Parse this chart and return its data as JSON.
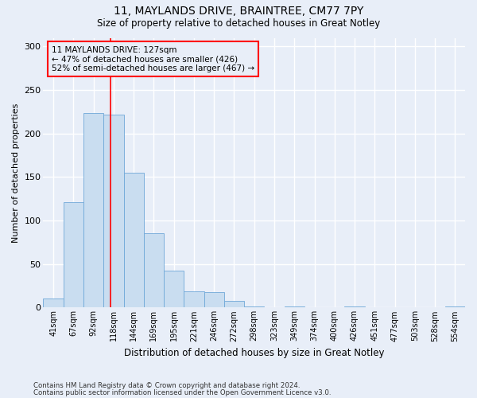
{
  "title_line1": "11, MAYLANDS DRIVE, BRAINTREE, CM77 7PY",
  "title_line2": "Size of property relative to detached houses in Great Notley",
  "xlabel": "Distribution of detached houses by size in Great Notley",
  "ylabel": "Number of detached properties",
  "bar_color": "#c9ddf0",
  "bar_edge_color": "#6fa8d8",
  "categories": [
    "41sqm",
    "67sqm",
    "92sqm",
    "118sqm",
    "144sqm",
    "169sqm",
    "195sqm",
    "221sqm",
    "246sqm",
    "272sqm",
    "298sqm",
    "323sqm",
    "349sqm",
    "374sqm",
    "400sqm",
    "426sqm",
    "451sqm",
    "477sqm",
    "503sqm",
    "528sqm",
    "554sqm"
  ],
  "values": [
    10,
    121,
    224,
    222,
    155,
    85,
    42,
    19,
    18,
    8,
    1,
    0,
    1,
    0,
    0,
    1,
    0,
    0,
    0,
    0,
    1
  ],
  "ylim": [
    0,
    310
  ],
  "yticks": [
    0,
    50,
    100,
    150,
    200,
    250,
    300
  ],
  "vline_x": 2.85,
  "bg_color": "#e8eef8",
  "grid_color": "#ffffff",
  "annotation_text": "11 MAYLANDS DRIVE: 127sqm\n← 47% of detached houses are smaller (426)\n52% of semi-detached houses are larger (467) →",
  "footer_line1": "Contains HM Land Registry data © Crown copyright and database right 2024.",
  "footer_line2": "Contains public sector information licensed under the Open Government Licence v3.0."
}
